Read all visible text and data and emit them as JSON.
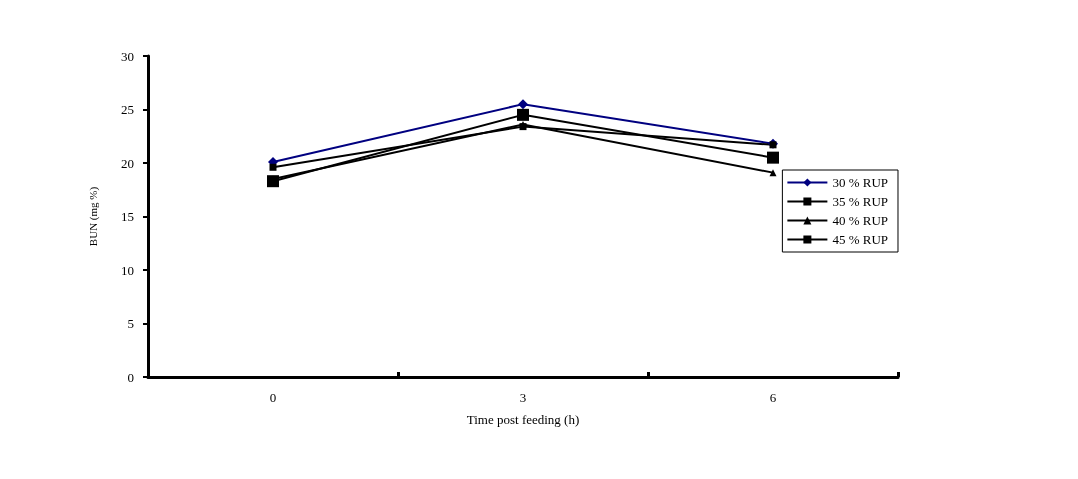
{
  "chart_data": {
    "type": "line",
    "xlabel": "Time post feeding (h)",
    "ylabel": "BUN (mg %)",
    "categories": [
      "0",
      "3",
      "6"
    ],
    "ylim": [
      0,
      30
    ],
    "yticks": [
      0,
      5,
      10,
      15,
      20,
      25,
      30
    ],
    "grid": false,
    "legend": "right",
    "series": [
      {
        "name": "30 % RUP",
        "color": "#000080",
        "marker": "diamond",
        "values": [
          20.1,
          25.5,
          21.8
        ]
      },
      {
        "name": "35 % RUP",
        "color": "#000000",
        "marker": "square",
        "values": [
          19.6,
          23.4,
          21.7
        ]
      },
      {
        "name": "40 % RUP",
        "color": "#000000",
        "marker": "triangle",
        "values": [
          18.5,
          23.6,
          19.1
        ]
      },
      {
        "name": "45 % RUP",
        "color": "#000000",
        "marker": "square",
        "values": [
          18.3,
          24.5,
          20.5
        ]
      }
    ]
  }
}
